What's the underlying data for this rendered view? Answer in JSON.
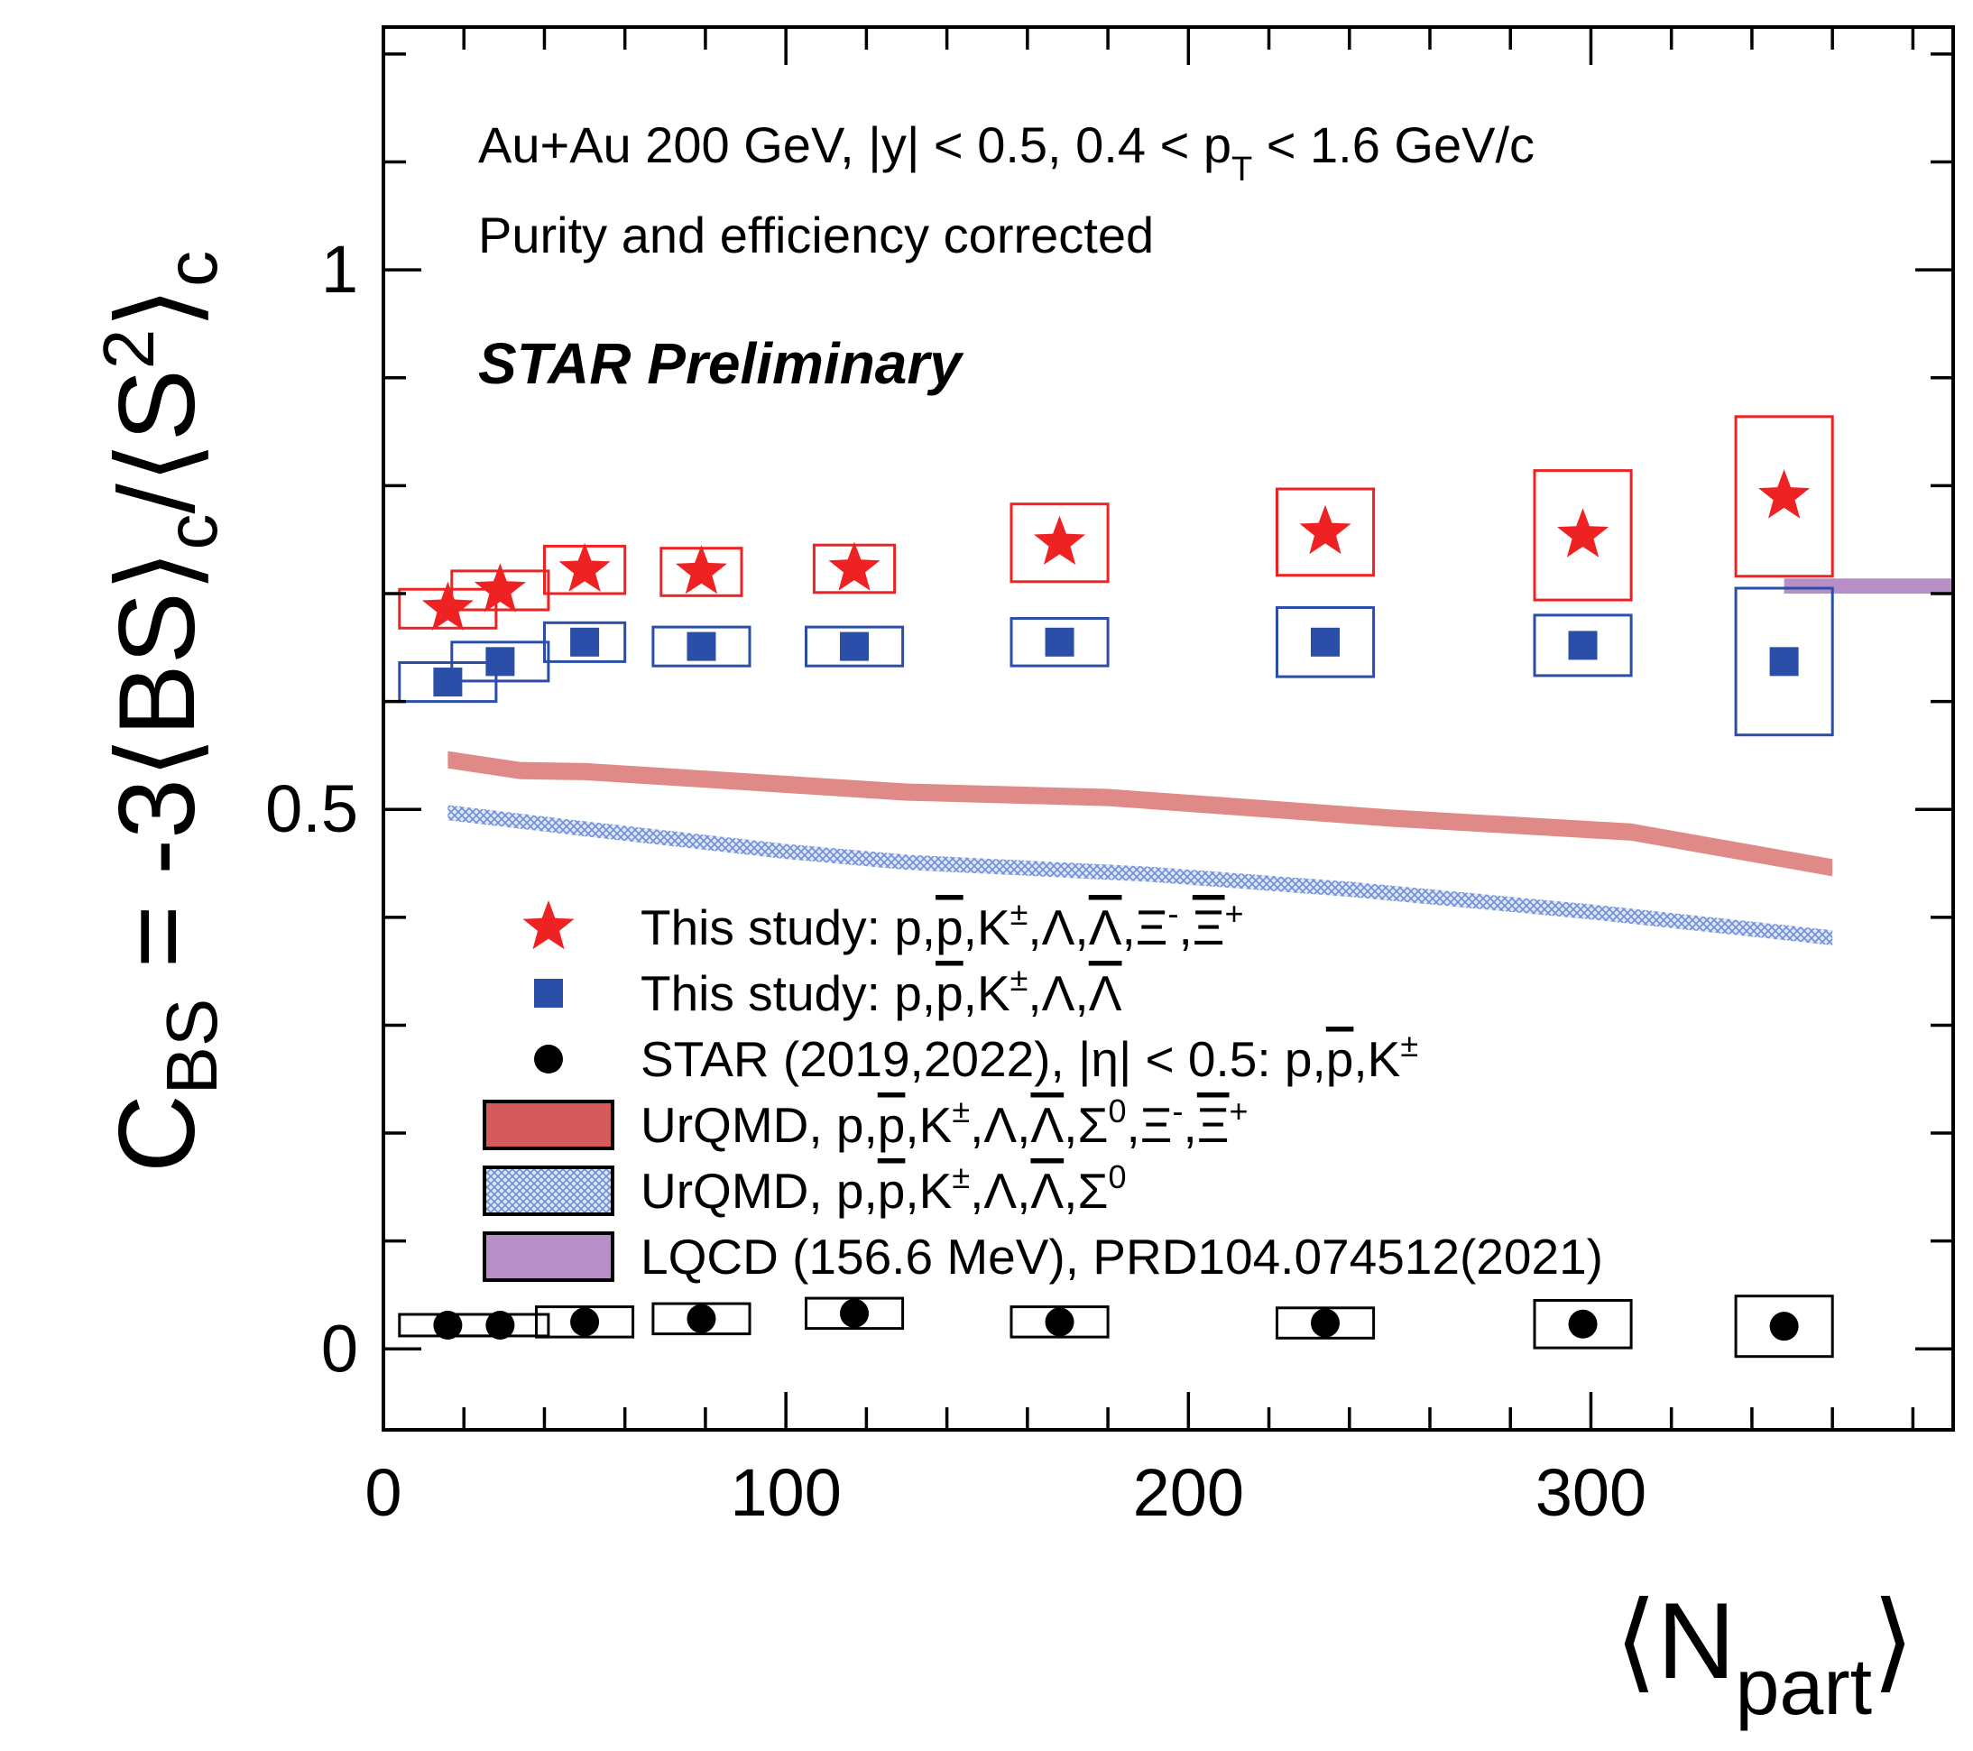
{
  "chart_data": {
    "type": "scatter",
    "xlabel_main": "⟨N",
    "xlabel_sub": "part",
    "xlabel_close": "⟩",
    "ylabel_parts": {
      "c": "C",
      "bs_sub": "BS",
      "middle": " = -3⟨BS⟩",
      "c_sub": "c",
      "slash": "/⟨S",
      "sq": "2",
      "close": "⟩",
      "c_sub2": "c"
    },
    "xlim": [
      0,
      390
    ],
    "ylim": [
      -0.075,
      1.225
    ],
    "x_ticks": [
      0,
      100,
      200,
      300
    ],
    "x_tick_labels": [
      "0",
      "100",
      "200",
      "300"
    ],
    "y_ticks": [
      0,
      0.5,
      1
    ],
    "y_tick_labels": [
      "0",
      "0.5",
      "1"
    ],
    "annotations": {
      "line1_a": "Au+Au 200 GeV, |y| < 0.5, 0.4 < p",
      "line1_sub": "T",
      "line1_b": " < 1.6 GeV/c",
      "line2": "Purity and efficiency corrected",
      "line3": "STAR Preliminary"
    },
    "series": [
      {
        "name": "This study: p,p̄,K±,Λ,Λ̄,Ξ⁻,Ξ̄⁺",
        "marker": "star",
        "color": "#ee2222",
        "x": [
          16,
          29,
          50,
          79,
          117,
          168,
          234,
          298,
          348
        ],
        "y": [
          0.686,
          0.703,
          0.722,
          0.72,
          0.723,
          0.747,
          0.757,
          0.754,
          0.79
        ],
        "sys_w": [
          12,
          12,
          10,
          10,
          10,
          12,
          12,
          12,
          12
        ],
        "sys_h": [
          0.018,
          0.018,
          0.022,
          0.022,
          0.022,
          0.036,
          0.04,
          0.06,
          0.074
        ]
      },
      {
        "name": "This study: p,p̄,K±,Λ,Λ̄",
        "marker": "square",
        "color": "#2b4fa8",
        "x": [
          16,
          29,
          50,
          79,
          117,
          168,
          234,
          298,
          348
        ],
        "y": [
          0.618,
          0.637,
          0.655,
          0.651,
          0.651,
          0.655,
          0.655,
          0.652,
          0.637
        ],
        "sys_w": [
          12,
          12,
          10,
          12,
          12,
          12,
          12,
          12,
          12
        ],
        "sys_h": [
          0.018,
          0.018,
          0.018,
          0.018,
          0.018,
          0.022,
          0.032,
          0.028,
          0.068
        ]
      },
      {
        "name": "STAR (2019,2022), |η| < 0.5: p,p̄,K±",
        "marker": "circle",
        "color": "#000000",
        "x": [
          16,
          29,
          50,
          79,
          117,
          168,
          234,
          298,
          348
        ],
        "y": [
          0.022,
          0.022,
          0.025,
          0.028,
          0.033,
          0.025,
          0.024,
          0.023,
          0.021
        ],
        "sys_w": [
          12,
          12,
          12,
          12,
          12,
          12,
          12,
          12,
          12
        ],
        "sys_h": [
          0.01,
          0.01,
          0.014,
          0.014,
          0.014,
          0.014,
          0.014,
          0.022,
          0.028
        ]
      },
      {
        "name": "UrQMD, p,p̄,K±,Λ,Λ̄,Σ⁰,Ξ⁻,Ξ̄⁺",
        "marker": "band",
        "color": "#e08a88",
        "x": [
          16,
          34,
          50,
          80,
          130,
          180,
          210,
          250,
          310,
          360
        ],
        "y": [
          0.546,
          0.536,
          0.535,
          0.528,
          0.516,
          0.511,
          0.503,
          0.492,
          0.479,
          0.446
        ],
        "band_half_width": 0.008
      },
      {
        "name": "UrQMD, p,p̄,K±,Λ,Λ̄,Σ⁰",
        "marker": "hatched-band",
        "color": "#6f8fd4",
        "x": [
          16,
          50,
          100,
          130,
          190,
          240,
          300,
          360
        ],
        "y": [
          0.497,
          0.482,
          0.461,
          0.451,
          0.44,
          0.426,
          0.405,
          0.381
        ],
        "band_half_width": 0.007
      },
      {
        "name": "LQCD (156.6 MeV), PRD104.074512(2021)",
        "marker": "band",
        "color": "#b78ec5",
        "x": [
          348,
          390
        ],
        "y": [
          0.707,
          0.707
        ],
        "band_half_width": 0.007
      }
    ],
    "legend": [
      {
        "marker": "star",
        "color": "#ee2222",
        "pre": "This study: p,",
        "pbar": "p",
        "mid": ",K",
        "sup1": "±",
        "rest": ",Λ,",
        "lbar": "Λ",
        "tail": ",Ξ",
        "sup2": "-",
        "tail2": ",",
        "xbar": "Ξ",
        "sup3": "+"
      },
      {
        "marker": "square",
        "color": "#2b4fa8",
        "pre": "This study: p,",
        "pbar": "p",
        "mid": ",K",
        "sup1": "±",
        "rest": ",Λ,",
        "lbar": "Λ"
      },
      {
        "marker": "circle",
        "color": "#000000",
        "pre": "STAR (2019,2022), |η| < 0.5: p,",
        "pbar": "p",
        "mid": ",K",
        "sup1": "±"
      },
      {
        "marker": "band",
        "color": "#d45a5c",
        "pre": "UrQMD, p,",
        "pbar": "p",
        "mid": ",K",
        "sup1": "±",
        "rest": ",Λ,",
        "lbar": "Λ",
        "sig": ",Σ",
        "sigsup": "0",
        "tail": ",Ξ",
        "sup2": "-",
        "tail2": ",",
        "xbar": "Ξ",
        "sup3": "+"
      },
      {
        "marker": "hatched-band",
        "color": "#6f8fd4",
        "pre": "UrQMD, p,",
        "pbar": "p",
        "mid": ",K",
        "sup1": "±",
        "rest": ",Λ,",
        "lbar": "Λ",
        "sig": ",Σ",
        "sigsup": "0"
      },
      {
        "marker": "band",
        "color": "#b78ec5",
        "pre": "LQCD (156.6 MeV), PRD104.074512(2021)"
      }
    ]
  }
}
